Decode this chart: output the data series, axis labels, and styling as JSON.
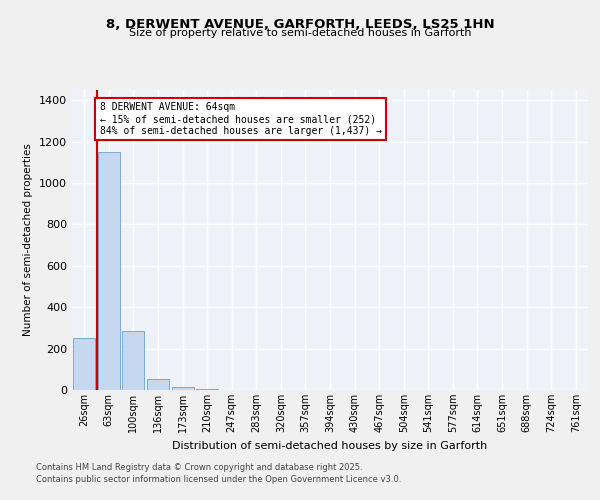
{
  "title_line1": "8, DERWENT AVENUE, GARFORTH, LEEDS, LS25 1HN",
  "title_line2": "Size of property relative to semi-detached houses in Garforth",
  "xlabel": "Distribution of semi-detached houses by size in Garforth",
  "ylabel": "Number of semi-detached properties",
  "categories": [
    "26sqm",
    "63sqm",
    "100sqm",
    "136sqm",
    "173sqm",
    "210sqm",
    "247sqm",
    "283sqm",
    "320sqm",
    "357sqm",
    "394sqm",
    "430sqm",
    "467sqm",
    "504sqm",
    "541sqm",
    "577sqm",
    "614sqm",
    "651sqm",
    "688sqm",
    "724sqm",
    "761sqm"
  ],
  "values": [
    252,
    1150,
    285,
    55,
    15,
    4,
    0,
    0,
    0,
    0,
    0,
    0,
    0,
    0,
    0,
    0,
    0,
    0,
    0,
    0,
    0
  ],
  "bar_color": "#c5d8f0",
  "bar_edge_color": "#7aaad0",
  "annotation_text": "8 DERWENT AVENUE: 64sqm\n← 15% of semi-detached houses are smaller (252)\n84% of semi-detached houses are larger (1,437) →",
  "annotation_box_color": "#ffffff",
  "annotation_box_edge": "#cc0000",
  "red_line_color": "#cc0000",
  "ylim": [
    0,
    1450
  ],
  "yticks": [
    0,
    200,
    400,
    600,
    800,
    1000,
    1200,
    1400
  ],
  "background_color": "#eef2f8",
  "grid_color": "#ffffff",
  "footer_line1": "Contains HM Land Registry data © Crown copyright and database right 2025.",
  "footer_line2": "Contains public sector information licensed under the Open Government Licence v3.0."
}
